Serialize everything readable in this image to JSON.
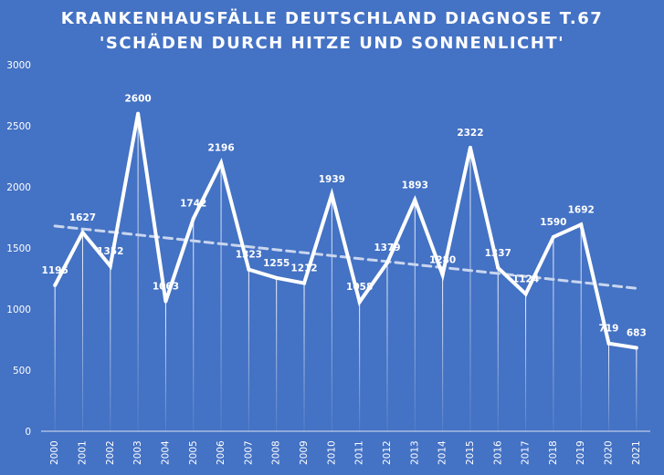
{
  "chart_data": {
    "type": "line",
    "title": "KRANKENHAUSFÄLLE DEUTSCHLAND DIAGNOSE T.67",
    "subtitle": "'SCHÄDEN DURCH HITZE UND SONNENLICHT'",
    "xlabel": "",
    "ylabel": "",
    "ylim": [
      0,
      3000
    ],
    "yticks": [
      0,
      500,
      1000,
      1500,
      2000,
      2500,
      3000
    ],
    "categories": [
      "2000",
      "2001",
      "2002",
      "2003",
      "2004",
      "2005",
      "2006",
      "2007",
      "2008",
      "2009",
      "2010",
      "2011",
      "2012",
      "2013",
      "2014",
      "2015",
      "2016",
      "2017",
      "2018",
      "2019",
      "2020",
      "2021"
    ],
    "series": [
      {
        "name": "",
        "values": [
          1195,
          1627,
          1352,
          2600,
          1063,
          1742,
          2196,
          1323,
          1255,
          1212,
          1939,
          1058,
          1379,
          1893,
          1280,
          2322,
          1337,
          1124,
          1590,
          1692,
          719,
          683
        ],
        "data_labels": [
          "1195",
          "1627",
          "1352",
          "2600",
          "1063",
          "1742",
          "2196",
          "1323",
          "1255",
          "1212",
          "1939",
          "1058",
          "1379",
          "1893",
          "1280",
          "2322",
          "1337",
          "1124",
          "1590",
          "1692",
          "719",
          "683"
        ]
      }
    ],
    "trendline": {
      "style": "dashed",
      "linear": true,
      "start": 1680,
      "end": 1170
    },
    "grid": false,
    "drop_lines": true,
    "legend": "none",
    "colors": {
      "background": "#4472c4",
      "line": "#ffffff",
      "trend": "#c9d6ee",
      "text": "#ffffff"
    }
  }
}
